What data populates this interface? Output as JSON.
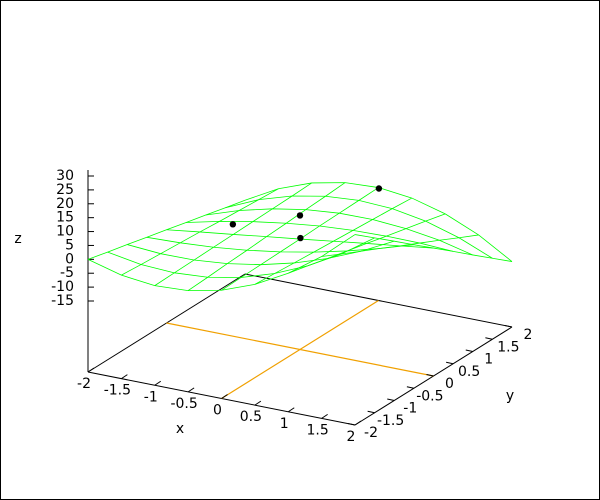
{
  "chart_data": {
    "type": "surface",
    "x": [
      -2,
      -1.5,
      -1,
      -0.5,
      0,
      0.5,
      1,
      1.5,
      2
    ],
    "y": [
      -2,
      -1.5,
      -1,
      -0.5,
      0,
      0.5,
      1,
      1.5,
      2
    ],
    "z": [
      [
        0,
        -1.8,
        -3.5,
        -5.3,
        -7,
        -8.8,
        -10.5,
        -12.3,
        -14
      ],
      [
        -3.3,
        -3.9,
        -4.4,
        -4.9,
        -5.4,
        -6.0,
        -6.5,
        -7.0,
        -7.5
      ],
      [
        -4.7,
        -4.5,
        -4.3,
        -4.1,
        -3.9,
        -3.7,
        -3.5,
        -3.3,
        -3.0
      ],
      [
        -4.1,
        -3.7,
        -3.2,
        -2.8,
        -2.3,
        -1.9,
        -1.4,
        -1.0,
        -0.5
      ],
      [
        -1.6,
        -1.4,
        -1.2,
        -1.0,
        -0.8,
        -0.5,
        -0.3,
        -0.1,
        0.1
      ],
      [
        2.9,
        2.4,
        1.8,
        1.3,
        0.8,
        0.3,
        -0.2,
        -0.7,
        -1.3
      ],
      [
        9.3,
        7.6,
        5.8,
        4.1,
        2.4,
        0.6,
        -1.1,
        -2.8,
        -4.6
      ],
      [
        17.7,
        14.2,
        10.8,
        7.4,
        3.9,
        0.5,
        -2.9,
        -6.4,
        -9.8
      ],
      [
        28,
        22.4,
        16.8,
        11.1,
        5.5,
        -0.1,
        -5.8,
        -11.4,
        -17.0
      ]
    ],
    "color": "#00ff00",
    "points": {
      "x": [
        0.3,
        0,
        -1.3,
        0.3
      ],
      "y": [
        1.5,
        0,
        0.5,
        -0.5
      ],
      "z": [
        5.6,
        7.7,
        -6.1,
        5.4
      ],
      "color": "#000000"
    },
    "xlabel": "x",
    "ylabel": "y",
    "zlabel": "z",
    "xlim": [
      -2,
      2
    ],
    "ylim": [
      -2,
      2
    ],
    "zlim": [
      -15,
      30
    ],
    "xticks": [
      -2,
      -1.5,
      -1,
      -0.5,
      0,
      0.5,
      1,
      1.5,
      2
    ],
    "yticks": [
      -2,
      -1.5,
      -1,
      -0.5,
      0,
      0.5,
      1,
      1.5,
      2
    ],
    "zticks": [
      -15,
      -10,
      -5,
      0,
      5,
      10,
      15,
      20,
      25,
      30
    ],
    "zero_axes_color": "#f0a000"
  }
}
